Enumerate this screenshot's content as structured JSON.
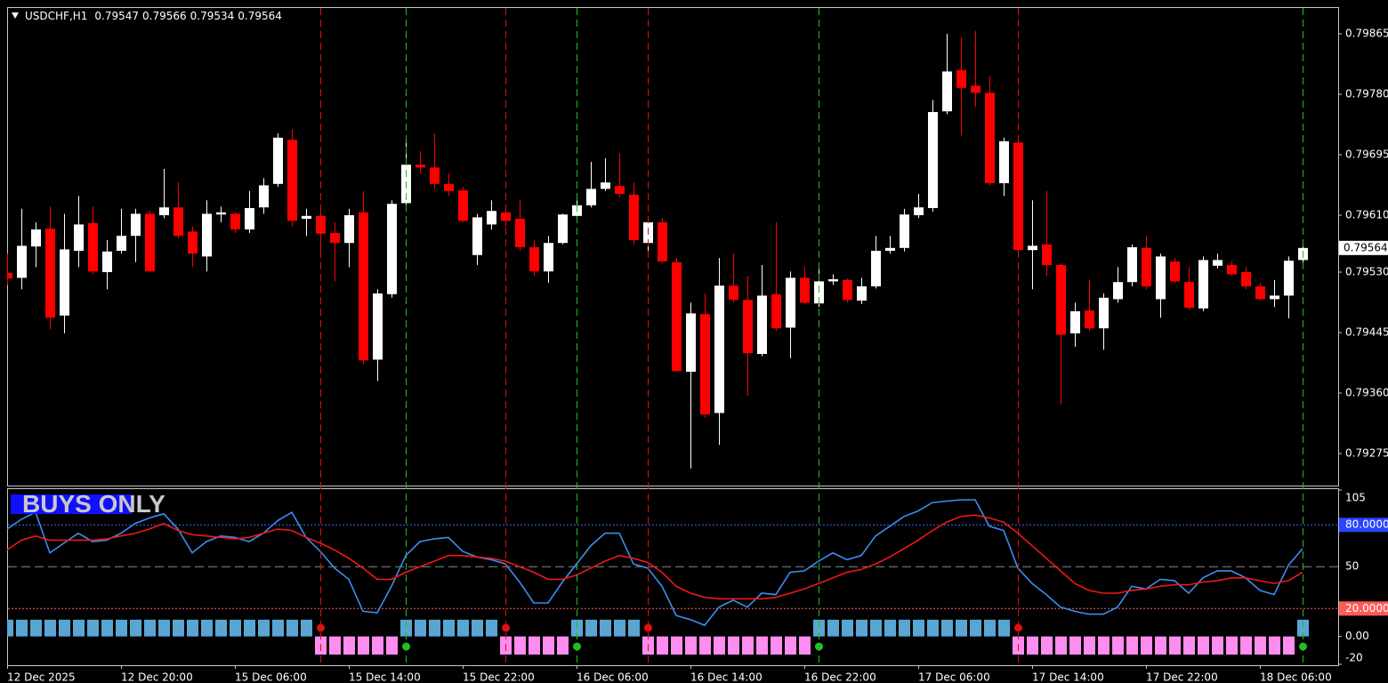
{
  "chart_data": [
    {
      "type": "candlestick",
      "title": "USDCHF,H1",
      "categories": [
        "12 Dec 2025",
        null,
        null,
        null,
        null,
        null,
        null,
        null,
        "12 Dec 20:00",
        null,
        null,
        null,
        null,
        null,
        null,
        null,
        "15 Dec 06:00",
        null,
        null,
        null,
        null,
        null,
        null,
        null,
        "15 Dec 14:00",
        null,
        null,
        null,
        null,
        null,
        null,
        null,
        "15 Dec 22:00",
        null,
        null,
        null,
        null,
        null,
        null,
        null,
        "16 Dec 06:00",
        null,
        null,
        null,
        null,
        null,
        null,
        null,
        "16 Dec 14:00",
        null,
        null,
        null,
        null,
        null,
        null,
        null,
        "16 Dec 22:00",
        null,
        null,
        null,
        null,
        null,
        null,
        null,
        "17 Dec 06:00",
        null,
        null,
        null,
        null,
        null,
        null,
        null,
        "17 Dec 14:00",
        null,
        null,
        null,
        null,
        null,
        null,
        null,
        "17 Dec 22:00",
        null,
        null,
        null,
        null,
        null,
        null,
        null,
        "18 Dec 06:00",
        null,
        null,
        null
      ],
      "open": [
        0.79529,
        0.79522,
        0.79566,
        0.79591,
        0.79469,
        0.7956,
        0.79599,
        0.7953,
        0.7956,
        0.79581,
        0.79612,
        0.7961,
        0.79621,
        0.79587,
        0.79552,
        0.79611,
        0.79612,
        0.7959,
        0.79621,
        0.79654,
        0.79716,
        0.79605,
        0.79609,
        0.79585,
        0.79571,
        0.79614,
        0.79407,
        0.79499,
        0.79627,
        0.79681,
        0.79677,
        0.79654,
        0.79645,
        0.79554,
        0.79597,
        0.79614,
        0.79605,
        0.79565,
        0.79531,
        0.79571,
        0.79609,
        0.79624,
        0.79647,
        0.79651,
        0.79639,
        0.79571,
        0.796,
        0.79544,
        0.7939,
        0.79471,
        0.79332,
        0.79511,
        0.79491,
        0.79415,
        0.79499,
        0.79452,
        0.79522,
        0.79486,
        0.79517,
        0.79519,
        0.7949,
        0.7951,
        0.7956,
        0.79564,
        0.7961,
        0.7962,
        0.79756,
        0.79814,
        0.79792,
        0.79782,
        0.79655,
        0.79712,
        0.79561,
        0.79569,
        0.7954,
        0.79444,
        0.79476,
        0.79451,
        0.79492,
        0.79516,
        0.79564,
        0.79492,
        0.79545,
        0.79516,
        0.79479,
        0.79539,
        0.7954,
        0.7953,
        0.7951,
        0.79492,
        0.79497,
        0.79547
      ],
      "high": [
        0.79556,
        0.79619,
        0.796,
        0.79622,
        0.79612,
        0.79637,
        0.79622,
        0.79575,
        0.79619,
        0.79619,
        0.79617,
        0.79675,
        0.79656,
        0.79594,
        0.79631,
        0.79622,
        0.79615,
        0.79644,
        0.79662,
        0.79725,
        0.79731,
        0.79619,
        0.79619,
        0.796,
        0.79619,
        0.79644,
        0.79506,
        0.79631,
        0.79712,
        0.797,
        0.79725,
        0.79669,
        0.7965,
        0.79612,
        0.79631,
        0.79625,
        0.79631,
        0.79575,
        0.79581,
        0.79612,
        0.79631,
        0.79685,
        0.7969,
        0.79697,
        0.79656,
        0.79606,
        0.79606,
        0.7955,
        0.79487,
        0.795,
        0.7955,
        0.79556,
        0.79525,
        0.7954,
        0.796,
        0.79531,
        0.79537,
        0.7954,
        0.79527,
        0.79521,
        0.79522,
        0.79581,
        0.79581,
        0.79619,
        0.7964,
        0.79772,
        0.79865,
        0.7986,
        0.79869,
        0.79806,
        0.79719,
        0.79715,
        0.79631,
        0.79644,
        0.79542,
        0.79487,
        0.79519,
        0.795,
        0.79537,
        0.79569,
        0.79581,
        0.79556,
        0.7955,
        0.79537,
        0.79552,
        0.79556,
        0.79546,
        0.79537,
        0.79515,
        0.79519,
        0.79552,
        0.79566
      ],
      "low": [
        0.79512,
        0.79506,
        0.79537,
        0.7945,
        0.79444,
        0.79537,
        0.79527,
        0.79506,
        0.79556,
        0.79544,
        0.79531,
        0.79606,
        0.79577,
        0.79537,
        0.79531,
        0.796,
        0.79585,
        0.79585,
        0.79612,
        0.7965,
        0.79594,
        0.79581,
        0.79556,
        0.79517,
        0.79537,
        0.794,
        0.79377,
        0.79494,
        0.79625,
        0.79669,
        0.79647,
        0.79637,
        0.796,
        0.7954,
        0.7959,
        0.79594,
        0.7956,
        0.79525,
        0.79515,
        0.79569,
        0.796,
        0.79621,
        0.79644,
        0.79635,
        0.79569,
        0.7955,
        0.79542,
        0.7939,
        0.79254,
        0.79325,
        0.79287,
        0.79487,
        0.79356,
        0.79412,
        0.79447,
        0.79409,
        0.79485,
        0.79481,
        0.79512,
        0.79487,
        0.79485,
        0.79507,
        0.79556,
        0.79559,
        0.79606,
        0.79615,
        0.79752,
        0.79722,
        0.79762,
        0.79652,
        0.79637,
        0.79556,
        0.79506,
        0.79525,
        0.79344,
        0.79425,
        0.79447,
        0.79421,
        0.79487,
        0.7951,
        0.79506,
        0.79466,
        0.79515,
        0.79477,
        0.79475,
        0.79535,
        0.79525,
        0.79506,
        0.7949,
        0.79481,
        0.79465,
        0.79534
      ],
      "close": [
        0.79521,
        0.79567,
        0.7959,
        0.79466,
        0.79562,
        0.79597,
        0.79531,
        0.79559,
        0.79581,
        0.79612,
        0.79531,
        0.79621,
        0.79581,
        0.79556,
        0.79612,
        0.79614,
        0.7959,
        0.7962,
        0.79652,
        0.79719,
        0.79602,
        0.79609,
        0.79584,
        0.79571,
        0.7961,
        0.79406,
        0.795,
        0.79626,
        0.79681,
        0.79677,
        0.79654,
        0.79644,
        0.79602,
        0.79607,
        0.79616,
        0.79602,
        0.79565,
        0.79531,
        0.79571,
        0.79611,
        0.79624,
        0.79647,
        0.79656,
        0.7964,
        0.79575,
        0.796,
        0.79545,
        0.79391,
        0.79472,
        0.7933,
        0.79511,
        0.79491,
        0.79416,
        0.79497,
        0.79451,
        0.79522,
        0.79487,
        0.79517,
        0.7952,
        0.79491,
        0.7951,
        0.7956,
        0.79564,
        0.79611,
        0.79621,
        0.79755,
        0.79812,
        0.79789,
        0.79782,
        0.79655,
        0.79714,
        0.79561,
        0.79567,
        0.7954,
        0.79442,
        0.79475,
        0.79451,
        0.79494,
        0.79516,
        0.79565,
        0.7951,
        0.79552,
        0.79517,
        0.7948,
        0.79547,
        0.79547,
        0.79527,
        0.7951,
        0.79492,
        0.79497,
        0.79546,
        0.79564
      ],
      "up_color": "#ffffff",
      "down_color": "#ff0000",
      "ylim": [
        0.7923,
        0.799025
      ],
      "yticks": [
        0.79865,
        {
          "value": 0.7978,
          "label": "0.79780"
        },
        0.79695,
        {
          "value": 0.7961,
          "label": "0.79610"
        },
        {
          "value": 0.7953,
          "label": "0.79530"
        },
        0.79445,
        {
          "value": 0.7936,
          "label": "0.79360"
        },
        0.79275
      ],
      "sell_signals": [
        22,
        35,
        45,
        71
      ],
      "sell_color": "#e01010",
      "buy_signals": [
        28,
        40,
        57,
        91
      ],
      "buy_color": "#20c020"
    },
    {
      "type": "line",
      "label": "BUYS ONLY",
      "label_box_color": "#1010ff",
      "series": [
        {
          "color": "#3b8ef0",
          "values": [
            77,
            84,
            89,
            60,
            67,
            74,
            68,
            69,
            74,
            81,
            85,
            88,
            77,
            60,
            68,
            72,
            71,
            68,
            74,
            83,
            89,
            71,
            61,
            49,
            41,
            18,
            17,
            36,
            58,
            68,
            70,
            71,
            61,
            57,
            55,
            52,
            39,
            24,
            24,
            39,
            52,
            65,
            74,
            74,
            52,
            49,
            36,
            15,
            12,
            8,
            21,
            26,
            21,
            31,
            30,
            46,
            47,
            54,
            60,
            55,
            58,
            72,
            79,
            86,
            90,
            96,
            97,
            98,
            98,
            79,
            76,
            49,
            38,
            30,
            21,
            18,
            16,
            16,
            21,
            36,
            34,
            41,
            40,
            31,
            42,
            47,
            47,
            42,
            33,
            30,
            51,
            63
          ]
        },
        {
          "color": "#f01818",
          "values": [
            62,
            69,
            72,
            69,
            69,
            69,
            69,
            70,
            72,
            74,
            77,
            81,
            76,
            73,
            72,
            71,
            70,
            71,
            74,
            77,
            76,
            71,
            67,
            62,
            56,
            49,
            41,
            41,
            46,
            50,
            54,
            58,
            58,
            57,
            56,
            54,
            50,
            46,
            41,
            41,
            44,
            49,
            54,
            58,
            56,
            53,
            46,
            36,
            31,
            28,
            27,
            27,
            27,
            27,
            28,
            31,
            34,
            38,
            42,
            46,
            48,
            52,
            57,
            63,
            69,
            76,
            82,
            86,
            87,
            85,
            82,
            74,
            65,
            56,
            47,
            38,
            33,
            31,
            31,
            33,
            34,
            36,
            37,
            37,
            39,
            40,
            42,
            42,
            40,
            38,
            40,
            46
          ]
        }
      ],
      "histogram": {
        "values": [
          12,
          12,
          12,
          12,
          12,
          12,
          12,
          12,
          12,
          12,
          12,
          12,
          12,
          12,
          12,
          12,
          12,
          12,
          12,
          12,
          12,
          12,
          -13,
          -13,
          -13,
          -13,
          -13,
          -13,
          12,
          12,
          12,
          12,
          12,
          12,
          12,
          -13,
          -13,
          -13,
          -13,
          -13,
          12,
          12,
          12,
          12,
          12,
          -13,
          -13,
          -13,
          -13,
          -13,
          -13,
          -13,
          -13,
          -13,
          -13,
          -13,
          -13,
          12,
          12,
          12,
          12,
          12,
          12,
          12,
          12,
          12,
          12,
          12,
          12,
          12,
          12,
          -13,
          -13,
          -13,
          -13,
          -13,
          -13,
          -13,
          -13,
          -13,
          -13,
          -13,
          -13,
          -13,
          -13,
          -13,
          -13,
          -13,
          -13,
          -13,
          -13,
          12
        ],
        "up_color": "#5aa6d2",
        "down_color": "#ff8cf0"
      },
      "ylim": [
        -20,
        105
      ],
      "yticks": [
        105,
        {
          "value": 80,
          "label": "80.0000",
          "line": "#3a6cff",
          "dash": "2 2",
          "box": "#2a44ff"
        },
        {
          "value": 50,
          "label": "50",
          "line": "#8c8c8c",
          "dash": "10 5"
        },
        {
          "value": 20,
          "label": "20.0000",
          "line": "#ff5a5a",
          "dash": "2 2",
          "box": "#ff5a5a"
        },
        {
          "value": 0,
          "label": "0.00"
        },
        -20
      ]
    }
  ]
}
